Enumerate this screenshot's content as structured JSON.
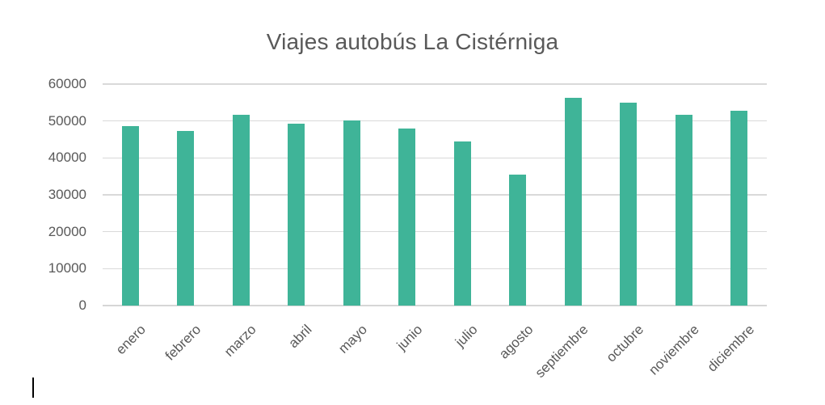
{
  "chart_data": {
    "type": "bar",
    "title": "Viajes autobús La Cistérniga",
    "categories": [
      "enero",
      "febrero",
      "marzo",
      "abril",
      "mayo",
      "junio",
      "julio",
      "agosto",
      "septiembre",
      "octubre",
      "noviembre",
      "diciembre"
    ],
    "values": [
      48700,
      47400,
      51700,
      49300,
      50200,
      48000,
      44400,
      35400,
      56300,
      55000,
      51700,
      52700
    ],
    "xlabel": "",
    "ylabel": "",
    "ylim": [
      0,
      60000
    ],
    "yticks": [
      0,
      10000,
      20000,
      30000,
      40000,
      50000,
      60000
    ],
    "grid": true,
    "legend": false,
    "bar_color": "#3fb498"
  },
  "colors": {
    "background": "#ffffff",
    "bar": "#3fb498",
    "title_text": "#595959",
    "axis_text": "#595959",
    "gridline": "#d9d9d9",
    "axis_line": "#d6d6d6",
    "cursor": "#000000"
  }
}
